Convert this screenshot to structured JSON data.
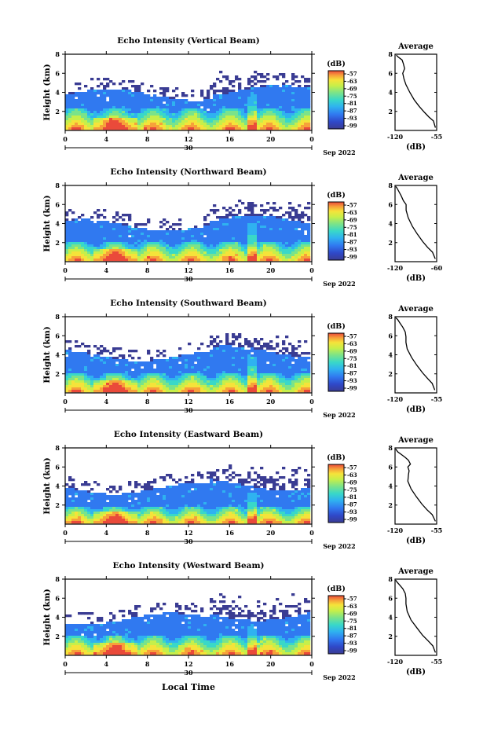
{
  "figure": {
    "bottom_xlabel": "Local Time"
  },
  "chart_data": [
    {
      "type": "heatmap",
      "title": "Echo Intensity (Vertical Beam)",
      "ylabel": "Height (km)",
      "x_ticks": [
        "0",
        "4",
        "8",
        "12",
        "16",
        "20",
        "0"
      ],
      "date_label": "30",
      "date_suffix": "Sep 2022",
      "ylim": [
        0,
        8
      ],
      "y_ticks": [
        "2",
        "4",
        "6",
        "8"
      ],
      "colorbar": {
        "unit": "(dB)",
        "ticks": [
          "-57",
          "-63",
          "-69",
          "-75",
          "-81",
          "-87",
          "-93",
          "-99"
        ]
      },
      "profile": {
        "title": "Average",
        "xlabel": "(dB)",
        "x_ticks": [
          "-120",
          "-55"
        ],
        "xlim": [
          -120,
          -55
        ],
        "y_ticks": [
          "2",
          "4",
          "6",
          "8"
        ],
        "points": [
          [
            -57,
            0.3
          ],
          [
            -60,
            1.0
          ],
          [
            -67,
            1.4
          ],
          [
            -74,
            1.9
          ],
          [
            -82,
            2.5
          ],
          [
            -90,
            3.2
          ],
          [
            -97,
            4.0
          ],
          [
            -103,
            4.8
          ],
          [
            -106,
            5.4
          ],
          [
            -108,
            6.0
          ],
          [
            -105,
            6.5
          ],
          [
            -107,
            7.0
          ],
          [
            -109,
            7.4
          ],
          [
            -115,
            7.7
          ],
          [
            -118,
            7.9
          ]
        ]
      },
      "echo": {
        "base_km": 2.2,
        "top_km": 3.7,
        "scatter_km": 6.5
      }
    },
    {
      "type": "heatmap",
      "title": "Echo Intensity (Northward Beam)",
      "ylabel": "Height (km)",
      "x_ticks": [
        "0",
        "4",
        "8",
        "12",
        "16",
        "20",
        "0"
      ],
      "date_label": "30",
      "date_suffix": "Sep 2022",
      "ylim": [
        0,
        8
      ],
      "y_ticks": [
        "2",
        "4",
        "6",
        "8"
      ],
      "colorbar": {
        "unit": "(dB)",
        "ticks": [
          "-57",
          "-63",
          "-69",
          "-75",
          "-81",
          "-87",
          "-93",
          "-99"
        ]
      },
      "profile": {
        "title": "Average",
        "xlabel": "(dB)",
        "x_ticks": [
          "-120",
          "-60"
        ],
        "xlim": [
          -120,
          -60
        ],
        "y_ticks": [
          "2",
          "4",
          "6",
          "8"
        ],
        "points": [
          [
            -62,
            0.3
          ],
          [
            -66,
            1.0
          ],
          [
            -73,
            1.5
          ],
          [
            -80,
            2.1
          ],
          [
            -88,
            2.9
          ],
          [
            -95,
            3.7
          ],
          [
            -101,
            4.6
          ],
          [
            -104,
            5.4
          ],
          [
            -104,
            6.0
          ],
          [
            -108,
            6.4
          ],
          [
            -111,
            6.9
          ],
          [
            -114,
            7.3
          ],
          [
            -117,
            7.7
          ],
          [
            -119,
            7.9
          ]
        ]
      },
      "echo": {
        "base_km": 2.0,
        "top_km": 3.8,
        "scatter_km": 6.6
      }
    },
    {
      "type": "heatmap",
      "title": "Echo Intensity (Southward Beam)",
      "ylabel": "Height (km)",
      "x_ticks": [
        "0",
        "4",
        "8",
        "12",
        "16",
        "20",
        "0"
      ],
      "date_label": "30",
      "date_suffix": "Sep 2022",
      "ylim": [
        0,
        8
      ],
      "y_ticks": [
        "2",
        "4",
        "6",
        "8"
      ],
      "colorbar": {
        "unit": "(dB)",
        "ticks": [
          "-57",
          "-63",
          "-69",
          "-75",
          "-81",
          "-87",
          "-93",
          "-99"
        ]
      },
      "profile": {
        "title": "Average",
        "xlabel": "(dB)",
        "x_ticks": [
          "-120",
          "-55"
        ],
        "xlim": [
          -120,
          -55
        ],
        "y_ticks": [
          "2",
          "4",
          "6",
          "8"
        ],
        "points": [
          [
            -58,
            0.3
          ],
          [
            -62,
            1.0
          ],
          [
            -69,
            1.5
          ],
          [
            -77,
            2.1
          ],
          [
            -86,
            2.9
          ],
          [
            -94,
            3.7
          ],
          [
            -101,
            4.6
          ],
          [
            -103,
            5.3
          ],
          [
            -103,
            5.9
          ],
          [
            -104,
            6.4
          ],
          [
            -108,
            6.9
          ],
          [
            -112,
            7.3
          ],
          [
            -116,
            7.7
          ],
          [
            -119,
            7.9
          ]
        ]
      },
      "echo": {
        "base_km": 2.0,
        "top_km": 3.9,
        "scatter_km": 6.6
      }
    },
    {
      "type": "heatmap",
      "title": "Echo Intensity (Eastward Beam)",
      "ylabel": "Height (km)",
      "x_ticks": [
        "0",
        "4",
        "8",
        "12",
        "16",
        "20",
        "0"
      ],
      "date_label": "30",
      "date_suffix": "Sep 2022",
      "ylim": [
        0,
        8
      ],
      "y_ticks": [
        "2",
        "4",
        "6",
        "8"
      ],
      "colorbar": {
        "unit": "(dB)",
        "ticks": [
          "-57",
          "-63",
          "-69",
          "-75",
          "-81",
          "-87",
          "-93",
          "-99"
        ]
      },
      "profile": {
        "title": "Average",
        "xlabel": "(dB)",
        "x_ticks": [
          "-120",
          "-55"
        ],
        "xlim": [
          -120,
          -55
        ],
        "y_ticks": [
          "2",
          "4",
          "6",
          "8"
        ],
        "points": [
          [
            -57,
            0.3
          ],
          [
            -62,
            1.0
          ],
          [
            -70,
            1.5
          ],
          [
            -78,
            2.1
          ],
          [
            -87,
            2.9
          ],
          [
            -95,
            3.7
          ],
          [
            -100,
            4.5
          ],
          [
            -99,
            5.2
          ],
          [
            -98,
            5.6
          ],
          [
            -100,
            6.0
          ],
          [
            -96,
            6.3
          ],
          [
            -99,
            6.7
          ],
          [
            -104,
            7.0
          ],
          [
            -110,
            7.3
          ],
          [
            -116,
            7.6
          ],
          [
            -119,
            7.9
          ]
        ]
      },
      "echo": {
        "base_km": 1.8,
        "top_km": 3.7,
        "scatter_km": 6.5
      }
    },
    {
      "type": "heatmap",
      "title": "Echo Intensity (Westward Beam)",
      "ylabel": "Height (km)",
      "x_ticks": [
        "0",
        "4",
        "8",
        "12",
        "16",
        "20",
        "0"
      ],
      "date_label": "30",
      "date_suffix": "Sep 2022",
      "ylim": [
        0,
        8
      ],
      "y_ticks": [
        "2",
        "4",
        "6",
        "8"
      ],
      "colorbar": {
        "unit": "(dB)",
        "ticks": [
          "-57",
          "-63",
          "-69",
          "-75",
          "-81",
          "-87",
          "-93",
          "-99"
        ]
      },
      "profile": {
        "title": "Average",
        "xlabel": "(dB)",
        "x_ticks": [
          "-120",
          "-55"
        ],
        "xlim": [
          -120,
          -55
        ],
        "y_ticks": [
          "2",
          "4",
          "6",
          "8"
        ],
        "points": [
          [
            -57,
            0.3
          ],
          [
            -61,
            1.0
          ],
          [
            -68,
            1.5
          ],
          [
            -77,
            2.1
          ],
          [
            -86,
            2.9
          ],
          [
            -95,
            3.7
          ],
          [
            -101,
            4.6
          ],
          [
            -103,
            5.4
          ],
          [
            -103,
            6.0
          ],
          [
            -104,
            6.5
          ],
          [
            -108,
            7.0
          ],
          [
            -113,
            7.4
          ],
          [
            -117,
            7.7
          ],
          [
            -119,
            7.9
          ]
        ]
      },
      "echo": {
        "base_km": 2.0,
        "top_km": 3.8,
        "scatter_km": 6.6
      }
    }
  ],
  "colors": {
    "colormap": [
      "#3a3c93",
      "#2f48c8",
      "#3079f0",
      "#2fb2f0",
      "#39d8c8",
      "#7ae38a",
      "#c6ef4a",
      "#f5e33a",
      "#f7a13a",
      "#ea4a3a"
    ],
    "ink": "#000000"
  }
}
